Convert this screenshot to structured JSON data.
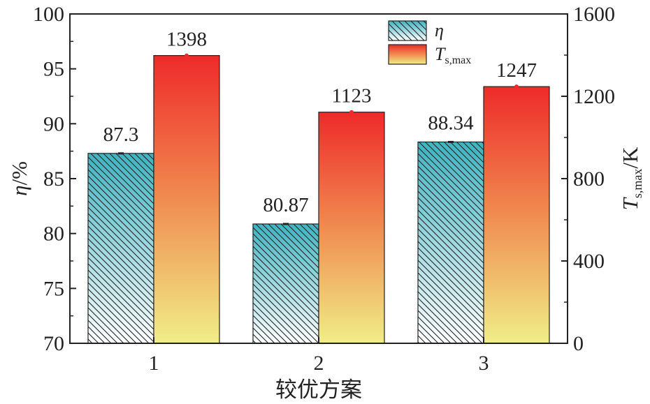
{
  "chart_data": {
    "type": "bar",
    "categories": [
      "1",
      "2",
      "3"
    ],
    "xlabel": "较优方案",
    "series": [
      {
        "name": "η",
        "axis": "left",
        "values": [
          87.3,
          80.87,
          88.34
        ],
        "labels": [
          "87.3",
          "80.87",
          "88.34"
        ],
        "fill": "hatched-gradient",
        "colors": [
          "#3fb3c1",
          "#ffffff"
        ]
      },
      {
        "name": "T_s,max",
        "axis": "right",
        "values": [
          1398,
          1123,
          1247
        ],
        "labels": [
          "1398",
          "1123",
          "1247"
        ],
        "fill": "gradient",
        "colors": [
          "#ee2a2a",
          "#f08c50",
          "#f0ee88"
        ]
      }
    ],
    "y_left": {
      "label_symbol": "η",
      "label_unit": "/%",
      "range": [
        70,
        100
      ],
      "ticks": [
        "70",
        "75",
        "80",
        "85",
        "90",
        "95",
        "100"
      ]
    },
    "y_right": {
      "label_symbol": "T",
      "label_sub": "s,max",
      "label_unit": "/K",
      "range": [
        0,
        1600
      ],
      "ticks": [
        "0",
        "400",
        "800",
        "1200",
        "1600"
      ]
    },
    "legend": {
      "position": "top-center",
      "entries": [
        {
          "symbol": "η",
          "sub": ""
        },
        {
          "symbol": "T",
          "sub": "s,max"
        }
      ]
    },
    "grid": false
  }
}
